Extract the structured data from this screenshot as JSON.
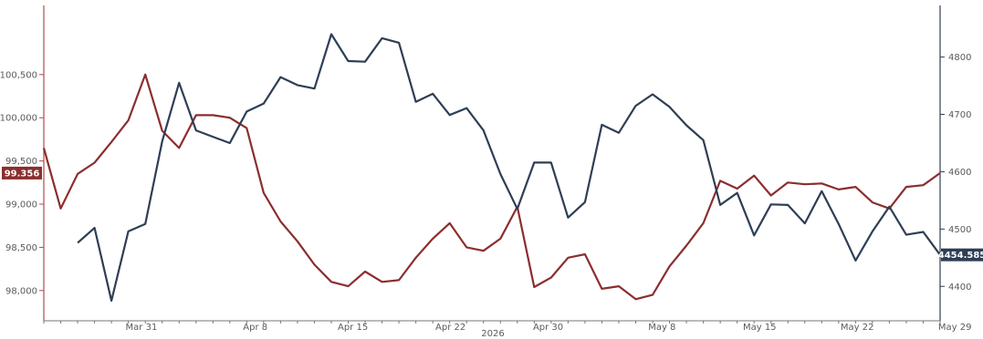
{
  "chart_data": {
    "type": "line",
    "xlabel": "2026",
    "x_ticks": [
      "Mar 31",
      "Apr 8",
      "Apr 15",
      "Apr 22",
      "Apr 30",
      "May 8",
      "May 15",
      "May 22",
      "May 29"
    ],
    "left_axis": {
      "ylim": [
        97.65,
        101.3
      ],
      "ticks": [
        "100,500",
        "100,000",
        "99,500",
        "99,000",
        "98,500",
        "98,000"
      ],
      "tick_values": [
        100.5,
        100.0,
        99.5,
        99.0,
        98.5,
        98.0
      ]
    },
    "right_axis": {
      "ylim": [
        4340,
        4890
      ],
      "ticks": [
        "4800",
        "4700",
        "4600",
        "4500",
        "4400"
      ],
      "tick_values": [
        4800,
        4700,
        4600,
        4500,
        4400
      ]
    },
    "series": [
      {
        "axis": "left",
        "color": "#8b2e2e",
        "last_value_label": "99.356",
        "points": [
          [
            0,
            99.65
          ],
          [
            1,
            98.95
          ],
          [
            2,
            99.35
          ],
          [
            3,
            99.48
          ],
          [
            4,
            99.72
          ],
          [
            5,
            99.97
          ],
          [
            6,
            100.5
          ],
          [
            7,
            99.85
          ],
          [
            8,
            99.65
          ],
          [
            9,
            100.03
          ],
          [
            10,
            100.03
          ],
          [
            11,
            100.0
          ],
          [
            12,
            99.88
          ],
          [
            13,
            99.13
          ],
          [
            14,
            98.8
          ],
          [
            15,
            98.57
          ],
          [
            16,
            98.3
          ],
          [
            17,
            98.1
          ],
          [
            18,
            98.05
          ],
          [
            19,
            98.22
          ],
          [
            20,
            98.1
          ],
          [
            21,
            98.12
          ],
          [
            22,
            98.38
          ],
          [
            23,
            98.6
          ],
          [
            24,
            98.78
          ],
          [
            25,
            98.5
          ],
          [
            26,
            98.46
          ],
          [
            27,
            98.6
          ],
          [
            28,
            98.97
          ],
          [
            29,
            98.04
          ],
          [
            30,
            98.15
          ],
          [
            31,
            98.38
          ],
          [
            32,
            98.42
          ],
          [
            33,
            98.02
          ],
          [
            34,
            98.05
          ],
          [
            35,
            97.9
          ],
          [
            36,
            97.95
          ],
          [
            37,
            98.28
          ],
          [
            38,
            98.52
          ],
          [
            39,
            98.78
          ],
          [
            40,
            99.27
          ],
          [
            41,
            99.18
          ],
          [
            42,
            99.33
          ],
          [
            43,
            99.1
          ],
          [
            44,
            99.25
          ],
          [
            45,
            99.23
          ],
          [
            46,
            99.24
          ],
          [
            47,
            99.17
          ],
          [
            48,
            99.2
          ],
          [
            49,
            99.02
          ],
          [
            50,
            98.95
          ],
          [
            51,
            99.2
          ],
          [
            52,
            99.22
          ],
          [
            53,
            99.36
          ]
        ]
      },
      {
        "axis": "right",
        "color": "#2e3e55",
        "last_value_label": "4454.585",
        "points": [
          [
            2,
            4476
          ],
          [
            3,
            4502
          ],
          [
            4,
            4375
          ],
          [
            5,
            4496
          ],
          [
            6,
            4509
          ],
          [
            7,
            4653
          ],
          [
            8,
            4755
          ],
          [
            9,
            4672
          ],
          [
            10,
            4661
          ],
          [
            11,
            4650
          ],
          [
            12,
            4705
          ],
          [
            13,
            4719
          ],
          [
            14,
            4765
          ],
          [
            15,
            4751
          ],
          [
            16,
            4745
          ],
          [
            17,
            4840
          ],
          [
            18,
            4793
          ],
          [
            19,
            4792
          ],
          [
            20,
            4833
          ],
          [
            21,
            4825
          ],
          [
            22,
            4722
          ],
          [
            23,
            4736
          ],
          [
            24,
            4699
          ],
          [
            25,
            4711
          ],
          [
            26,
            4672
          ],
          [
            27,
            4596
          ],
          [
            28,
            4535
          ],
          [
            29,
            4616
          ],
          [
            30,
            4616
          ],
          [
            31,
            4520
          ],
          [
            32,
            4547
          ],
          [
            33,
            4682
          ],
          [
            34,
            4668
          ],
          [
            35,
            4715
          ],
          [
            36,
            4735
          ],
          [
            37,
            4713
          ],
          [
            38,
            4681
          ],
          [
            39,
            4655
          ],
          [
            40,
            4542
          ],
          [
            41,
            4563
          ],
          [
            42,
            4489
          ],
          [
            43,
            4543
          ],
          [
            44,
            4542
          ],
          [
            45,
            4510
          ],
          [
            46,
            4566
          ],
          [
            47,
            4509
          ],
          [
            48,
            4445
          ],
          [
            49,
            4496
          ],
          [
            50,
            4539
          ],
          [
            51,
            4490
          ],
          [
            52,
            4495
          ],
          [
            53,
            4455
          ]
        ]
      }
    ],
    "grid": false,
    "legend": "none"
  }
}
